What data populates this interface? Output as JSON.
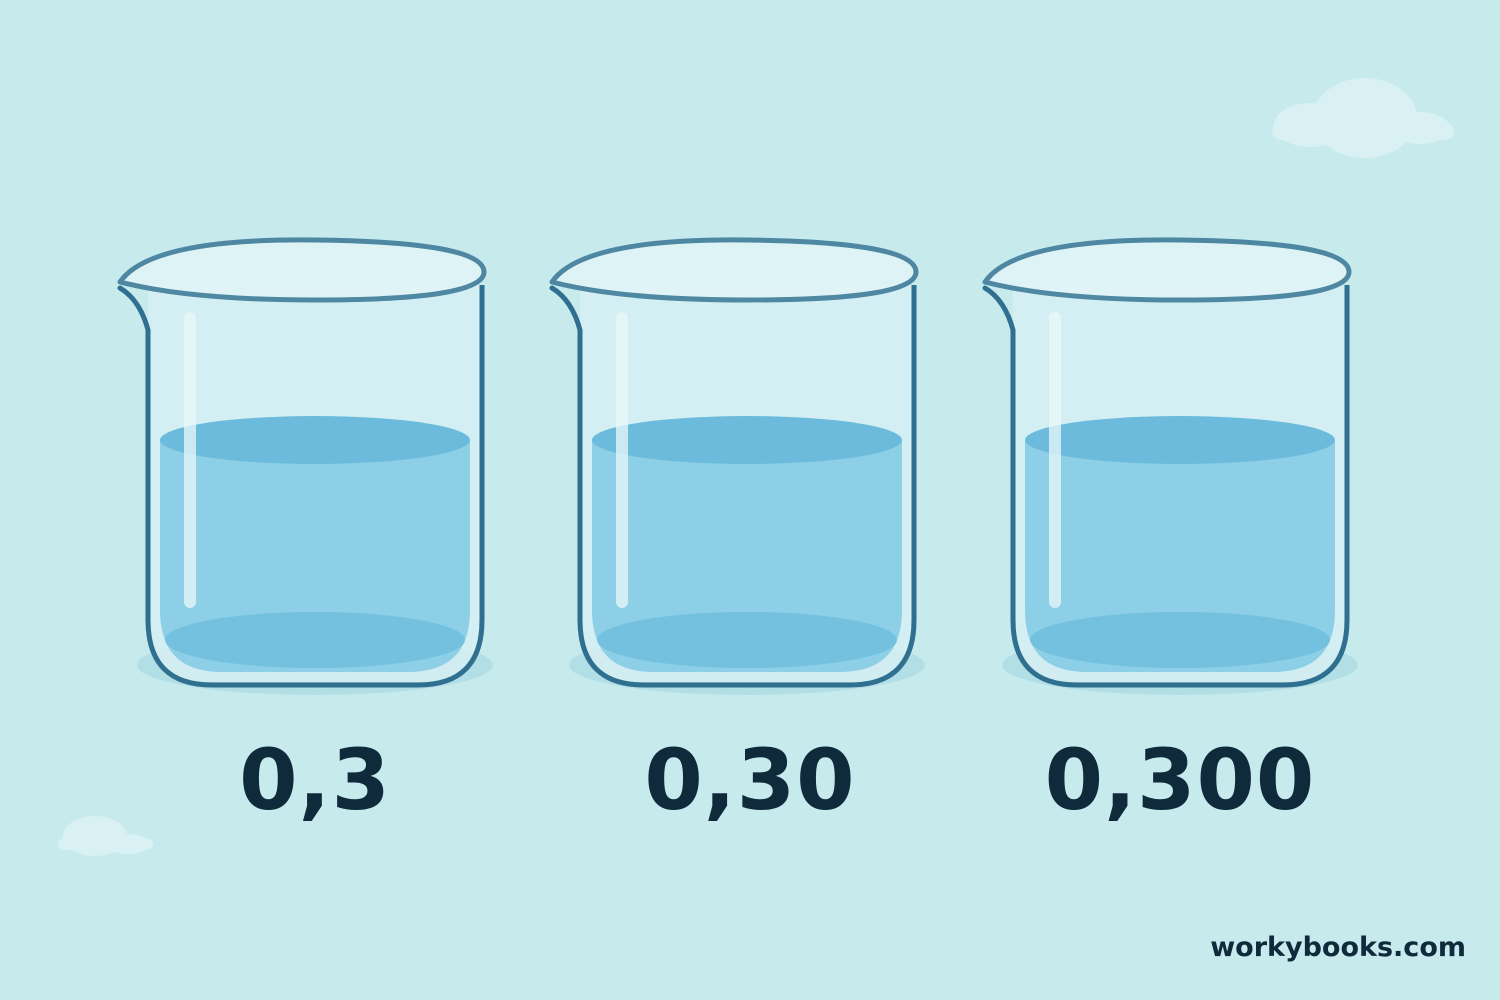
{
  "values": [
    "0,3",
    "0,30",
    "0,300"
  ],
  "fill_level": [
    0.55,
    0.55,
    0.55
  ],
  "watermark": "workybooks.com",
  "colors": {
    "background": "#c7eaed",
    "cloud": "#d9f1f3",
    "glass_outline": "#2f6f8f",
    "glass_fill": "#d6f0f3",
    "water": "#8ccfe6",
    "water_top": "#6cbbdc",
    "text": "#0f2a3b"
  }
}
